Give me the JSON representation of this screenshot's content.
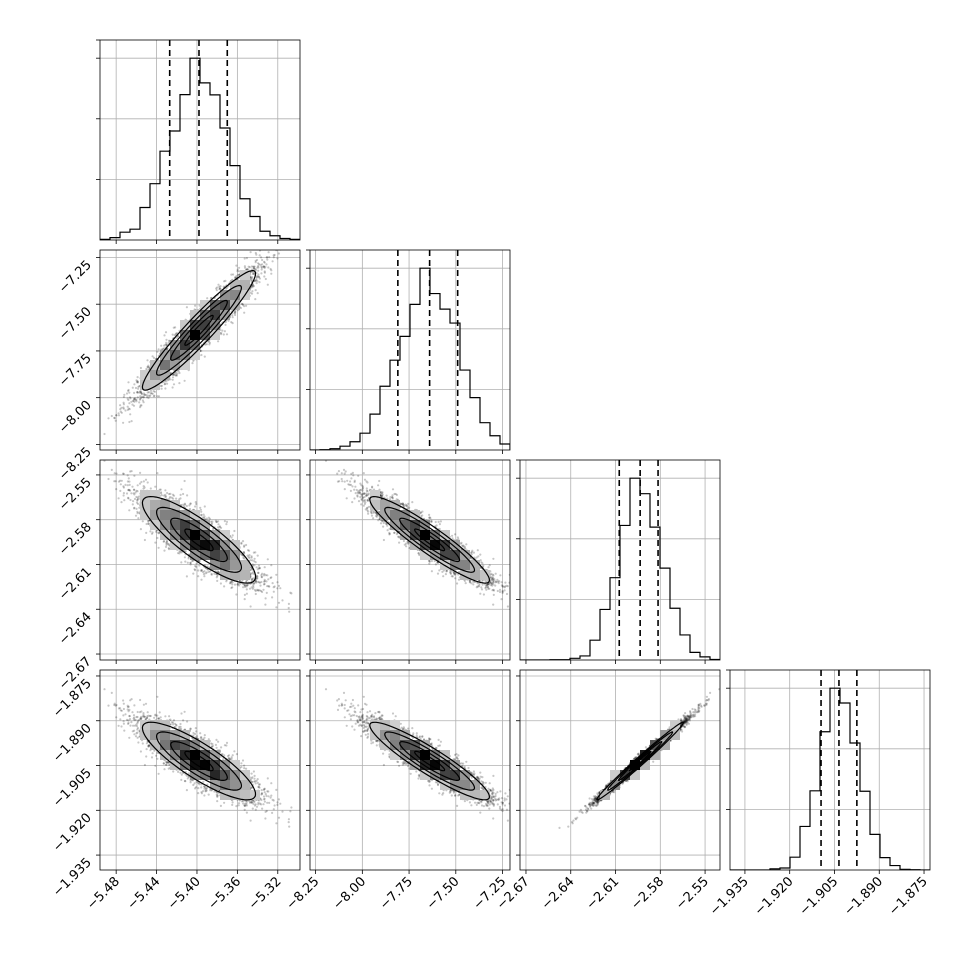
{
  "chart_data": {
    "type": "corner",
    "grid": true,
    "parameters": [
      {
        "mean": -5.398,
        "std": 0.028,
        "range": [
          -5.496,
          -5.298
        ],
        "ticks": [
          -5.48,
          -5.44,
          -5.4,
          -5.36,
          -5.32
        ],
        "tick_labels": [
          "−5.48",
          "−5.44",
          "−5.40",
          "−5.36",
          "−5.32"
        ],
        "quantiles": [
          -5.427,
          -5.398,
          -5.37
        ]
      },
      {
        "mean": -7.64,
        "std": 0.16,
        "range": [
          -8.28,
          -7.21
        ],
        "ticks": [
          -8.25,
          -8.0,
          -7.75,
          -7.5,
          -7.25
        ],
        "tick_labels": [
          "−8.25",
          "−8.00",
          "−7.75",
          "−7.50",
          "−7.25"
        ],
        "quantiles": [
          -7.81,
          -7.64,
          -7.49
        ]
      },
      {
        "mean": -2.5935,
        "std": 0.0145,
        "range": [
          -2.674,
          -2.54
        ],
        "ticks": [
          -2.67,
          -2.64,
          -2.61,
          -2.58,
          -2.55
        ],
        "tick_labels": [
          "−2.67",
          "−2.64",
          "−2.61",
          "−2.58",
          "−2.55"
        ],
        "quantiles": [
          -2.6075,
          -2.5935,
          -2.5815
        ]
      },
      {
        "mean": -1.9035,
        "std": 0.0065,
        "range": [
          -1.94,
          -1.873
        ],
        "ticks": [
          -1.935,
          -1.92,
          -1.905,
          -1.89,
          -1.875
        ],
        "tick_labels": [
          "−1.935",
          "−1.920",
          "−1.905",
          "−1.890",
          "−1.875"
        ],
        "quantiles": [
          -1.9095,
          -1.9035,
          -1.8975
        ]
      }
    ],
    "correlations": [
      [
        1.0,
        0.95,
        -0.85,
        -0.85
      ],
      [
        0.95,
        1.0,
        -0.93,
        -0.92
      ],
      [
        -0.85,
        -0.93,
        1.0,
        0.99
      ],
      [
        -0.85,
        -0.92,
        0.99,
        1.0
      ]
    ],
    "hist_bins": 20,
    "samples": 4000,
    "contour_levels": [
      0.5,
      1.0,
      1.5,
      2.0
    ],
    "colors": {
      "points": "#000000",
      "lines": "#000000",
      "grid": "#b0b0b0"
    }
  }
}
